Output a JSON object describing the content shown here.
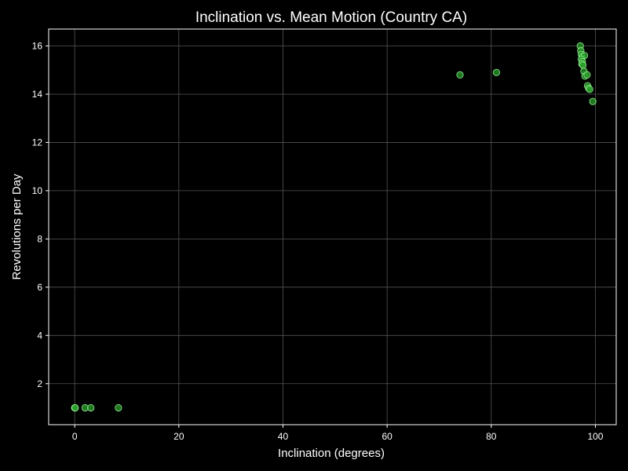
{
  "chart_data": {
    "type": "scatter",
    "title": "Inclination vs. Mean Motion (Country CA)",
    "xlabel": "Inclination (degrees)",
    "ylabel": "Revolutions per Day",
    "xlim": [
      -5,
      104
    ],
    "ylim": [
      0.3,
      16.7
    ],
    "xticks": [
      0,
      20,
      40,
      60,
      80,
      100
    ],
    "yticks": [
      2,
      4,
      6,
      8,
      10,
      12,
      14,
      16
    ],
    "grid": true,
    "colors": {
      "background": "#000000",
      "point_fill": "#2ca02c",
      "point_edge": "#90ee90",
      "grid": "#555555",
      "axis": "#ffffff"
    },
    "points": [
      {
        "x": 0.0,
        "y": 1.0
      },
      {
        "x": 0.05,
        "y": 1.0
      },
      {
        "x": 0.1,
        "y": 1.0
      },
      {
        "x": 2.0,
        "y": 1.0
      },
      {
        "x": 3.1,
        "y": 1.0
      },
      {
        "x": 8.4,
        "y": 1.0
      },
      {
        "x": 74.0,
        "y": 14.8
      },
      {
        "x": 81.0,
        "y": 14.9
      },
      {
        "x": 97.1,
        "y": 16.0
      },
      {
        "x": 97.2,
        "y": 15.8
      },
      {
        "x": 97.3,
        "y": 15.65
      },
      {
        "x": 97.5,
        "y": 15.55
      },
      {
        "x": 97.9,
        "y": 15.6
      },
      {
        "x": 97.3,
        "y": 15.45
      },
      {
        "x": 97.5,
        "y": 15.35
      },
      {
        "x": 97.4,
        "y": 15.25
      },
      {
        "x": 97.6,
        "y": 15.2
      },
      {
        "x": 97.8,
        "y": 14.95
      },
      {
        "x": 98.0,
        "y": 14.75
      },
      {
        "x": 98.4,
        "y": 14.8
      },
      {
        "x": 98.5,
        "y": 14.35
      },
      {
        "x": 98.7,
        "y": 14.25
      },
      {
        "x": 98.9,
        "y": 14.2
      },
      {
        "x": 99.5,
        "y": 13.7
      }
    ]
  }
}
